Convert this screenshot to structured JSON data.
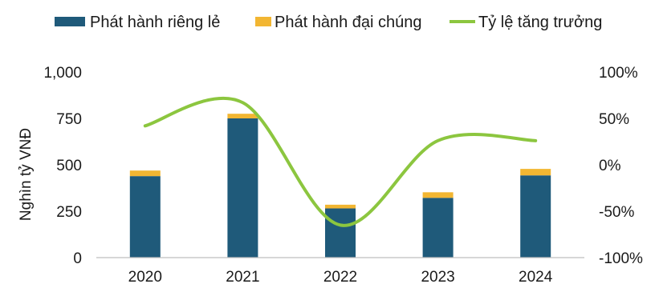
{
  "chart_data": {
    "type": "bar",
    "stacked": true,
    "categories": [
      "2020",
      "2021",
      "2022",
      "2023",
      "2024"
    ],
    "series": [
      {
        "name": "Phát hành riêng lẻ",
        "type": "bar",
        "axis": "left",
        "color": "#1f5a7a",
        "values": [
          439,
          750,
          265,
          322,
          443
        ]
      },
      {
        "name": "Phát hành đại chúng",
        "type": "bar",
        "axis": "left",
        "color": "#f2b632",
        "values": [
          30,
          25,
          20,
          30,
          35
        ]
      },
      {
        "name": "Tỷ lệ tăng trưởng",
        "type": "line",
        "axis": "right",
        "color": "#8cc63f",
        "values": [
          42,
          67,
          -65,
          26,
          26
        ]
      }
    ],
    "xlabel": "",
    "ylabel": "Nghìn tỷ VNĐ",
    "ylim": [
      0,
      1000
    ],
    "yticks": [
      "0",
      "250",
      "500",
      "750",
      "1,000"
    ],
    "y2lim": [
      -100,
      100
    ],
    "y2ticks": [
      "-100%",
      "-50%",
      "0%",
      "50%",
      "100%"
    ],
    "legend_position": "top",
    "grid": false
  }
}
